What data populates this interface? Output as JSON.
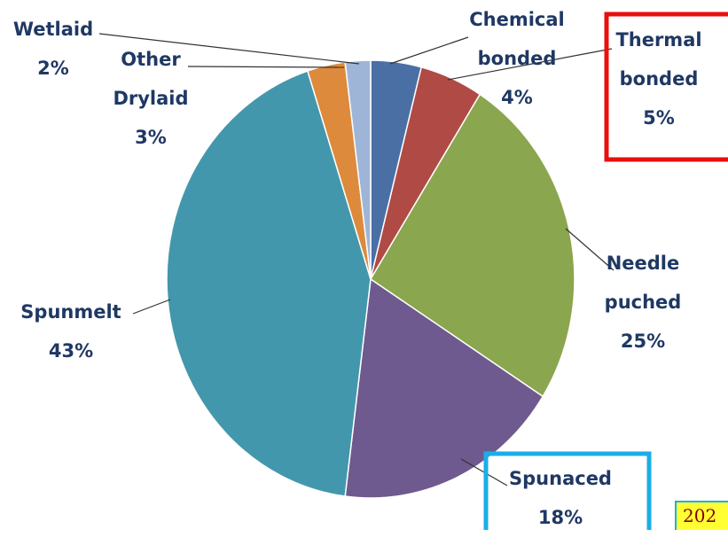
{
  "chart_data": {
    "type": "pie",
    "categories": [
      "Chemical bonded",
      "Thermal bonded",
      "Needle puched",
      "Spunaced",
      "Spunmelt",
      "Other Drylaid",
      "Wetlaid"
    ],
    "values": [
      4,
      5,
      25,
      18,
      43,
      3,
      2
    ],
    "value_labels": [
      "4%",
      "5%",
      "25%",
      "18%",
      "43%",
      "3%",
      "2%"
    ],
    "colors": [
      "#4a6fa5",
      "#b04a45",
      "#8aa64e",
      "#6e5a8e",
      "#4397ad",
      "#dd8a3c",
      "#9fb5d8"
    ],
    "annotation": "202"
  }
}
